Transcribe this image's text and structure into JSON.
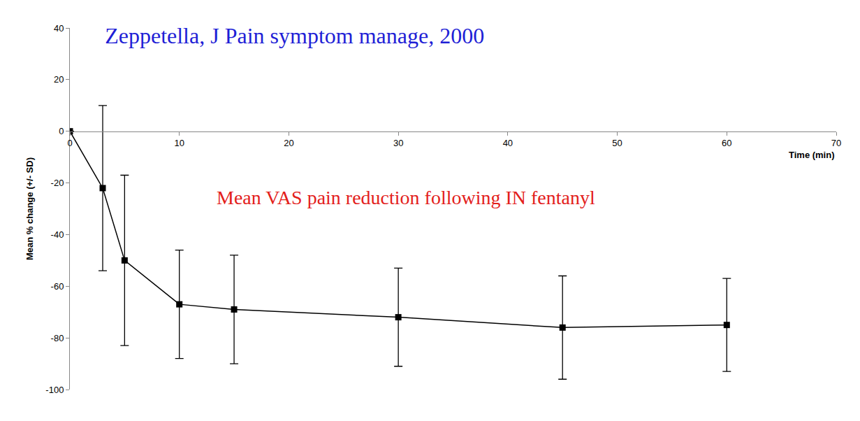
{
  "chart_data": {
    "type": "line",
    "title": "Zeppetella, J Pain symptom manage, 2000",
    "annotation": "Mean VAS pain reduction following IN fentanyl",
    "x_label": "Time (min)",
    "y_label": "Mean % change (+/- SD)",
    "x": [
      0,
      3,
      5,
      10,
      15,
      30,
      45,
      60
    ],
    "values": [
      0,
      -22,
      -50,
      -67,
      -69,
      -72,
      -76,
      -75
    ],
    "error": [
      0,
      32,
      33,
      21,
      21,
      19,
      20,
      18
    ],
    "color": "#000000",
    "marker": "square",
    "line_style": "solid",
    "xlim": [
      0,
      70
    ],
    "xticks": [
      0,
      10,
      20,
      30,
      40,
      50,
      60,
      70
    ],
    "ylim": [
      -100,
      40
    ],
    "yticks": [
      -100,
      -80,
      -60,
      -40,
      -20,
      0,
      20,
      40
    ],
    "grid": false
  }
}
